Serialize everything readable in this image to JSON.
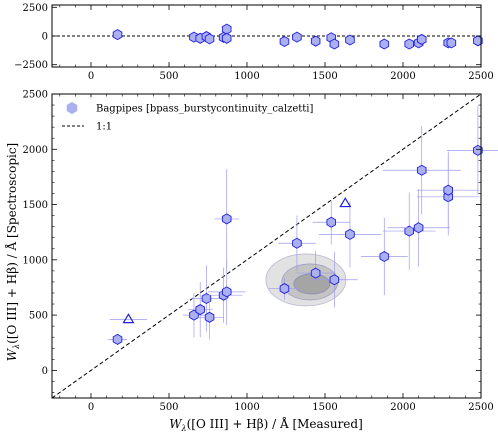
{
  "chart_data": [
    {
      "type": "scatter",
      "panel": "residual",
      "xlim": [
        -250,
        2500
      ],
      "ylim": [
        -2700,
        2700
      ],
      "x_ticks": [
        0,
        500,
        1000,
        1500,
        2000,
        2500
      ],
      "y_ticks": [
        -2500,
        0,
        2500
      ],
      "x_tick_labels": [
        "0",
        "500",
        "1000",
        "1500",
        "2000",
        "2500"
      ],
      "y_tick_labels": [
        "−2500",
        "0",
        "2500"
      ],
      "reference_line": "y = 0",
      "series": [
        {
          "marker": "hexagon",
          "points": [
            {
              "x": 170,
              "y": 120
            },
            {
              "x": 660,
              "y": -100
            },
            {
              "x": 700,
              "y": -200
            },
            {
              "x": 740,
              "y": -50
            },
            {
              "x": 760,
              "y": -250
            },
            {
              "x": 850,
              "y": -120
            },
            {
              "x": 870,
              "y": 600
            },
            {
              "x": 870,
              "y": -200
            },
            {
              "x": 1240,
              "y": -480
            },
            {
              "x": 1320,
              "y": -100
            },
            {
              "x": 1440,
              "y": -450
            },
            {
              "x": 1540,
              "y": -150
            },
            {
              "x": 1560,
              "y": -700
            },
            {
              "x": 1660,
              "y": -350
            },
            {
              "x": 1880,
              "y": -700
            },
            {
              "x": 2040,
              "y": -700
            },
            {
              "x": 2100,
              "y": -600
            },
            {
              "x": 2120,
              "y": -300
            },
            {
              "x": 2290,
              "y": -600
            },
            {
              "x": 2310,
              "y": -600
            },
            {
              "x": 2480,
              "y": -420
            }
          ]
        }
      ]
    },
    {
      "type": "scatter",
      "panel": "main",
      "xlabel": "W_λ([O III] + Hβ) / Å  [Measured]",
      "ylabel": "W_λ([O III] + Hβ) / Å  [Spectroscopic]",
      "xlim": [
        -250,
        2500
      ],
      "ylim": [
        -250,
        2500
      ],
      "x_ticks": [
        0,
        500,
        1000,
        1500,
        2000,
        2500
      ],
      "y_ticks": [
        0,
        500,
        1000,
        1500,
        2000,
        2500
      ],
      "x_tick_labels": [
        "0",
        "500",
        "1000",
        "1500",
        "2000",
        "2500"
      ],
      "y_tick_labels": [
        "0",
        "500",
        "1000",
        "1500",
        "2000",
        "2500"
      ],
      "legend_position": "top-left",
      "legend": [
        {
          "label": "Bagpipes [bpass_burstycontinuity_calzetti]",
          "marker": "hexagon"
        },
        {
          "label": "1:1",
          "marker": "dashed-line"
        }
      ],
      "one_to_one_line": true,
      "series": [
        {
          "name": "Bagpipes [bpass_burstycontinuity_calzetti]",
          "marker": "hexagon",
          "points": [
            {
              "x": 170,
              "y": 280,
              "xerr": 60,
              "yerr": 50
            },
            {
              "x": 660,
              "y": 500,
              "xerr": 70,
              "yerr": 200
            },
            {
              "x": 700,
              "y": 550,
              "xerr": 80,
              "yerr": 250
            },
            {
              "x": 740,
              "y": 650,
              "xerr": 100,
              "yerr": 300
            },
            {
              "x": 760,
              "y": 480,
              "xerr": 90,
              "yerr": 200
            },
            {
              "x": 850,
              "y": 680,
              "xerr": 120,
              "yerr": 250
            },
            {
              "x": 870,
              "y": 710,
              "xerr": 120,
              "yerr": 300
            },
            {
              "x": 870,
              "y": 1370,
              "xerr": 80,
              "yerr": 450
            },
            {
              "x": 1240,
              "y": 740,
              "xerr": 100,
              "yerr": 100
            },
            {
              "x": 1320,
              "y": 1150,
              "xerr": 120,
              "yerr": 250
            },
            {
              "x": 1440,
              "y": 880,
              "xerr": 130,
              "yerr": 200
            },
            {
              "x": 1540,
              "y": 1340,
              "xerr": 120,
              "yerr": 200
            },
            {
              "x": 1560,
              "y": 820,
              "xerr": 150,
              "yerr": 250
            },
            {
              "x": 1660,
              "y": 1230,
              "xerr": 200,
              "yerr": 300
            },
            {
              "x": 1880,
              "y": 1030,
              "xerr": 150,
              "yerr": 350
            },
            {
              "x": 2040,
              "y": 1260,
              "xerr": 170,
              "yerr": 350
            },
            {
              "x": 2100,
              "y": 1290,
              "xerr": 200,
              "yerr": 350
            },
            {
              "x": 2120,
              "y": 1810,
              "xerr": 250,
              "yerr": 400
            },
            {
              "x": 2290,
              "y": 1570,
              "xerr": 200,
              "yerr": 350
            },
            {
              "x": 2290,
              "y": 1630,
              "xerr": 200,
              "yerr": 350
            },
            {
              "x": 2480,
              "y": 1990,
              "xerr": 200,
              "yerr": 400
            }
          ]
        },
        {
          "marker": "open-triangle",
          "points": [
            {
              "x": 240,
              "y": 460,
              "xerr": 120,
              "yerr": 0
            },
            {
              "x": 1630,
              "y": 1510,
              "xerr": 0,
              "yerr": 0
            }
          ]
        }
      ],
      "density_contour": {
        "center_x": 1390,
        "center_y": 800
      }
    }
  ]
}
